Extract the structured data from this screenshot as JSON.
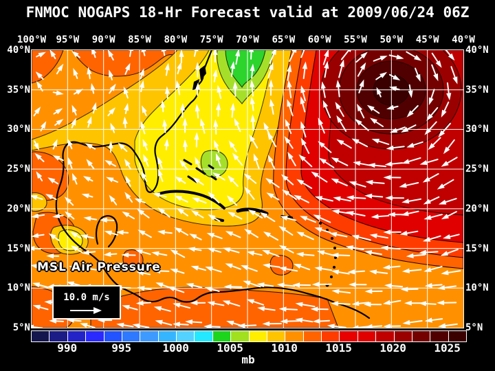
{
  "title": "FNMOC NOGAPS 18-Hr Forecast valid at 2009/06/24 06Z",
  "map": {
    "lon_labels": [
      "100°W",
      "95°W",
      "90°W",
      "85°W",
      "80°W",
      "75°W",
      "70°W",
      "65°W",
      "60°W",
      "55°W",
      "50°W",
      "45°W",
      "40°W"
    ],
    "lat_labels": [
      "40°N",
      "35°N",
      "30°N",
      "25°N",
      "20°N",
      "15°N",
      "10°N",
      "5°N"
    ],
    "overlay_label": "MSL Air Pressure",
    "wind_legend": {
      "speed_label": "10.0 m/s"
    }
  },
  "colorbar": {
    "tick_labels": [
      "990",
      "995",
      "1000",
      "1005",
      "1010",
      "1015",
      "1020",
      "1025"
    ],
    "unit": "mb",
    "cell_colors": [
      "#16164e",
      "#1c1c86",
      "#2323c8",
      "#2a2aff",
      "#2353ff",
      "#2e79ff",
      "#3f9aff",
      "#36b5ff",
      "#54d2ff",
      "#24e8ff",
      "#1dd51d",
      "#a0e01e",
      "#ffee00",
      "#ffc400",
      "#ff9100",
      "#ff6400",
      "#ff3c00",
      "#e80000",
      "#e00000",
      "#c00000",
      "#9b0000",
      "#740000",
      "#500000",
      "#3a0000"
    ]
  },
  "colors": {
    "background": "#000000",
    "text": "#ffffff",
    "base": "#ff9100",
    "dark_orange": "#ff6400",
    "gold": "#ffc400",
    "yellow": "#ffee00",
    "yellow_green": "#a6df2a",
    "green": "#2cd42c",
    "band_ff6400": "#ff6400",
    "band_ff3c00": "#ff3c00",
    "band_red": "#e00000",
    "band_dark_red": "#c00000",
    "ring_1": "#9b0000",
    "ring_2": "#740000",
    "ring_3": "#500000",
    "ring_4": "#3a0000",
    "grid": "#ffffff",
    "arrow": "#ffffff"
  }
}
